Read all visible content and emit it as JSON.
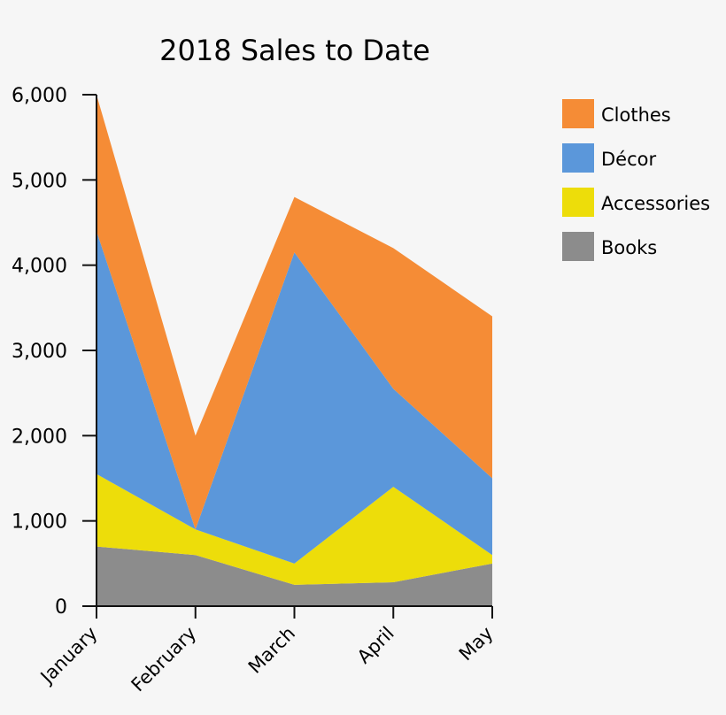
{
  "chart_data": {
    "type": "area",
    "stacked": true,
    "title": "2018 Sales to Date",
    "xlabel": "",
    "ylabel": "",
    "categories": [
      "January",
      "February",
      "March",
      "April",
      "May"
    ],
    "ylim": [
      0,
      6000
    ],
    "yticks": [
      0,
      1000,
      2000,
      3000,
      4000,
      5000,
      6000
    ],
    "ytick_labels": [
      "0",
      "1,000",
      "2,000",
      "3,000",
      "4,000",
      "5,000",
      "6,000"
    ],
    "grid": false,
    "legend_position": "right",
    "series": [
      {
        "name": "Books",
        "color": "#8c8c8c",
        "values": [
          700,
          600,
          250,
          280,
          500
        ]
      },
      {
        "name": "Accessories",
        "color": "#eddd0a",
        "values": [
          850,
          300,
          250,
          1120,
          100
        ]
      },
      {
        "name": "Décor",
        "color": "#5b97da",
        "values": [
          2850,
          0,
          3650,
          1150,
          900
        ]
      },
      {
        "name": "Clothes",
        "color": "#f58c36",
        "values": [
          1600,
          1100,
          650,
          1650,
          1900
        ]
      }
    ],
    "legend": [
      {
        "label": "Clothes",
        "color": "#f58c36"
      },
      {
        "label": "Décor",
        "color": "#5b97da"
      },
      {
        "label": "Accessories",
        "color": "#eddd0a"
      },
      {
        "label": "Books",
        "color": "#8c8c8c"
      }
    ]
  }
}
